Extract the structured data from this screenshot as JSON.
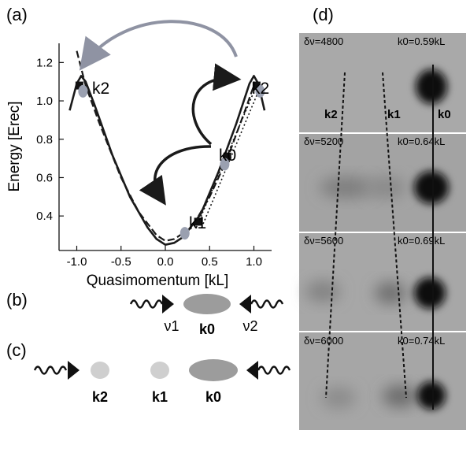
{
  "panel_labels": {
    "a": "(a)",
    "b": "(b)",
    "c": "(c)",
    "d": "(d)"
  },
  "chart_data": {
    "type": "line",
    "xlabel": "Quasimomentum [kL]",
    "ylabel": "Energy [Erec]",
    "xlim": [
      -1.2,
      1.2
    ],
    "ylim": [
      0.22,
      1.3
    ],
    "x_ticks": [
      -1.0,
      -0.5,
      0.0,
      0.5,
      1.0
    ],
    "x_tick_labels": [
      "-1.0",
      "-0.5",
      "0.0",
      "0.5",
      "1.0"
    ],
    "y_ticks": [
      0.4,
      0.6,
      0.8,
      1.0,
      1.2
    ],
    "y_tick_labels": [
      "0.4",
      "0.6",
      "0.8",
      "1.0",
      "1.2"
    ],
    "grid": false,
    "series": [
      {
        "style": "solid",
        "x": [
          -1.08,
          -1.0,
          -0.95,
          -0.9,
          -0.8,
          -0.6,
          -0.4,
          -0.2,
          -0.1,
          0.0,
          0.1,
          0.2,
          0.3,
          0.4,
          0.6,
          0.8,
          0.9,
          0.95,
          1.0,
          1.05,
          1.12
        ],
        "y": [
          0.95,
          1.09,
          1.13,
          1.1,
          0.98,
          0.72,
          0.5,
          0.34,
          0.28,
          0.25,
          0.26,
          0.29,
          0.35,
          0.41,
          0.63,
          0.88,
          1.02,
          1.09,
          1.13,
          1.09,
          0.95
        ]
      },
      {
        "style": "dashed",
        "x": [
          -1.0,
          -0.9,
          -0.75,
          -0.5,
          -0.3,
          -0.1,
          0.0,
          0.1,
          0.3,
          0.5,
          0.7,
          0.9,
          1.0
        ],
        "y": [
          1.26,
          1.08,
          0.89,
          0.6,
          0.42,
          0.3,
          0.27,
          0.28,
          0.34,
          0.5,
          0.7,
          0.95,
          1.08
        ]
      }
    ],
    "points": [
      {
        "label": "k1",
        "x": 0.22,
        "y": 0.31
      },
      {
        "label": "k0",
        "x": 0.67,
        "y": 0.67
      },
      {
        "label": "k2",
        "x": 1.07,
        "y": 1.05
      },
      {
        "label": "k2",
        "x": -0.93,
        "y": 1.05
      }
    ],
    "squares": [
      {
        "x": 0.37,
        "y": 0.37
      },
      {
        "x": 0.7,
        "y": 0.71
      },
      {
        "x": 1.03,
        "y": 1.08
      },
      {
        "x": -0.97,
        "y": 1.08
      }
    ],
    "dotted_lines": [
      {
        "x": [
          0.35,
          1.03
        ],
        "y": [
          0.34,
          1.08
        ]
      },
      {
        "x": [
          0.41,
          1.06
        ],
        "y": [
          0.34,
          1.06
        ]
      }
    ]
  },
  "panel_b": {
    "nu1": "ν1",
    "nu2": "ν2",
    "k0": "k0"
  },
  "panel_c": {
    "k2": "k2",
    "k1": "k1",
    "k0": "k0"
  },
  "panel_d": {
    "frames": [
      {
        "dnu": "δν=4800",
        "k0val": "k0=0.59kL"
      },
      {
        "dnu": "δν=5200",
        "k0val": "k0=0.64kL"
      },
      {
        "dnu": "δν=5600",
        "k0val": "k0=0.69kL"
      },
      {
        "dnu": "δν=6000",
        "k0val": "k0=0.74kL"
      }
    ],
    "inner_labels": {
      "k2": "k2",
      "k1": "k1",
      "k0": "k0"
    }
  },
  "colors": {
    "curve": "#1a1a1a",
    "arrow_gray": "#8f93a3",
    "point": "#9aa0b0",
    "gray_blob": "#9c9c9c",
    "light_blob": "#cfcfcf"
  }
}
